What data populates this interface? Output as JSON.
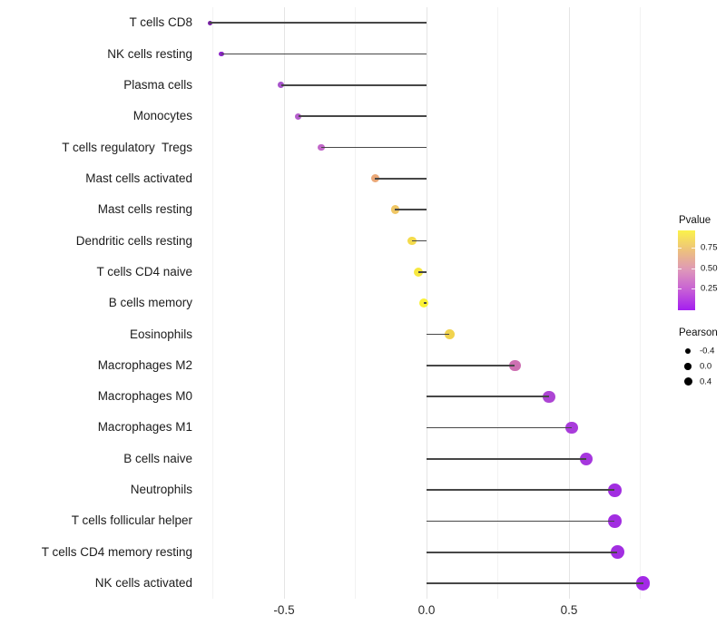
{
  "figure": {
    "background": "#ffffff",
    "stem_color": "#474747"
  },
  "chart_data": {
    "type": "scatter",
    "subtype": "lollipop",
    "orientation": "horizontal",
    "title": "",
    "xlabel": "",
    "ylabel": "",
    "x_axis": {
      "range": [
        -0.82,
        0.8
      ],
      "major_ticks": [
        -0.5,
        0.0,
        0.5
      ],
      "major_tick_labels": [
        "-0.5",
        "0.0",
        "0.5"
      ],
      "minor_ticks": [
        -0.75,
        -0.25,
        0.25,
        0.75
      ],
      "baseline": 0.0,
      "grid": "vertical-only"
    },
    "points": [
      {
        "label": "T cells CD8",
        "pearson": -0.76,
        "color": "#7a1fa8"
      },
      {
        "label": "NK cells resting",
        "pearson": -0.72,
        "color": "#8c25c8"
      },
      {
        "label": "Plasma cells",
        "pearson": -0.51,
        "color": "#a855cc"
      },
      {
        "label": "Monocytes",
        "pearson": -0.45,
        "color": "#b55ecc"
      },
      {
        "label": "T cells regulatory  Tregs",
        "pearson": -0.37,
        "color": "#c267c9"
      },
      {
        "label": "Mast cells activated",
        "pearson": -0.18,
        "color": "#eaa878"
      },
      {
        "label": "Mast cells resting",
        "pearson": -0.11,
        "color": "#f0c765"
      },
      {
        "label": "Dendritic cells resting",
        "pearson": -0.05,
        "color": "#f4db4c"
      },
      {
        "label": "T cells CD4 naive",
        "pearson": -0.03,
        "color": "#f7e840"
      },
      {
        "label": "B cells memory",
        "pearson": -0.01,
        "color": "#faf136"
      },
      {
        "label": "Eosinophils",
        "pearson": 0.08,
        "color": "#f1d34e"
      },
      {
        "label": "Macrophages M2",
        "pearson": 0.31,
        "color": "#ce70b2"
      },
      {
        "label": "Macrophages M0",
        "pearson": 0.43,
        "color": "#ad45d4"
      },
      {
        "label": "Macrophages M1",
        "pearson": 0.51,
        "color": "#a93cdb"
      },
      {
        "label": "B cells naive",
        "pearson": 0.56,
        "color": "#a637de"
      },
      {
        "label": "Neutrophils",
        "pearson": 0.66,
        "color": "#a22ee1"
      },
      {
        "label": "T cells follicular helper",
        "pearson": 0.66,
        "color": "#a22ee1"
      },
      {
        "label": "T cells CD4 memory resting",
        "pearson": 0.67,
        "color": "#a22ee1"
      },
      {
        "label": "NK cells activated",
        "pearson": 0.76,
        "color": "#a329e6"
      }
    ],
    "legend_pvalue": {
      "title": "Pvalue",
      "tick_labels": [
        "0.75",
        "0.50",
        "0.25"
      ],
      "tick_fractions_from_top": [
        0.22,
        0.48,
        0.73
      ],
      "gradient_top_to_bottom": [
        "#fbf24a",
        "#edc17d",
        "#de96ba",
        "#c65ed6",
        "#a41ef0"
      ]
    },
    "legend_pearson": {
      "title": "Pearson",
      "entries": [
        {
          "label": "-0.4",
          "diameter": 6
        },
        {
          "label": "0.0",
          "diameter": 7.5
        },
        {
          "label": "0.4",
          "diameter": 9
        }
      ]
    }
  }
}
